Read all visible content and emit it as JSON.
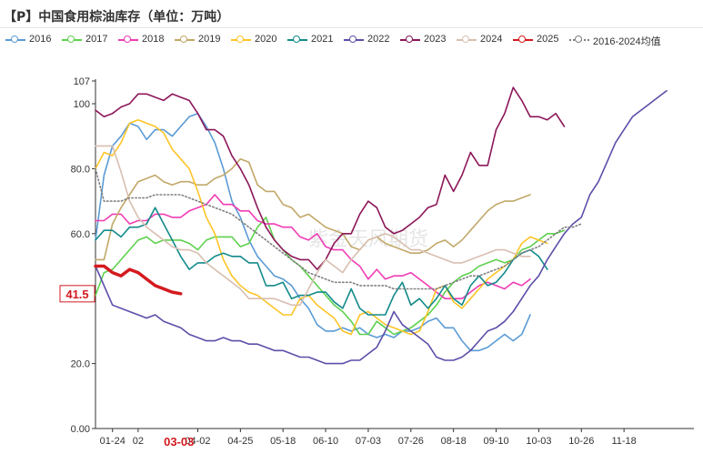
{
  "title": "【P】中国食用棕油库存（单位：万吨）",
  "watermark": "紫金天风期货",
  "latest_marker": {
    "label": "41.5",
    "value": 41.5
  },
  "date_marker": {
    "label": "03-03"
  },
  "chart_data": {
    "type": "line",
    "ylim": [
      0,
      107
    ],
    "yticks": [
      0,
      20,
      40,
      60,
      80,
      100,
      107
    ],
    "ytick_labels": [
      "0.00",
      "20.0",
      "40.0",
      "60.0",
      "80.0",
      "100",
      "107"
    ],
    "xticks": [
      "01-24",
      "02",
      "04-02",
      "04-25",
      "05-18",
      "06-10",
      "07-03",
      "07-26",
      "08-18",
      "09-10",
      "10-03",
      "10-26",
      "11-18"
    ],
    "legend_position": "top",
    "grid": false,
    "series": [
      {
        "name": "2016",
        "color": "#5b9bd5",
        "style": "solid",
        "values": [
          58,
          78,
          87,
          90,
          94,
          93,
          89,
          92,
          92,
          90,
          93,
          96,
          97,
          93,
          88,
          80,
          70,
          65,
          58,
          53,
          50,
          47,
          46,
          44,
          40,
          37,
          32,
          30,
          30,
          31,
          30,
          31,
          29,
          28,
          29,
          28,
          30,
          30,
          31,
          33,
          34,
          31,
          31,
          27,
          24,
          24,
          25,
          27,
          29,
          27,
          29,
          35
        ]
      },
      {
        "name": "2017",
        "color": "#5ed14e",
        "style": "solid",
        "values": [
          41,
          48,
          49,
          52,
          55,
          58,
          59,
          57,
          58,
          58,
          58,
          57,
          55,
          58,
          59,
          59,
          59,
          56,
          57,
          62,
          65,
          58,
          55,
          52,
          50,
          47,
          44,
          41,
          38,
          36,
          33,
          29,
          29,
          33,
          31,
          29,
          30,
          31,
          33,
          35,
          38,
          42,
          45,
          47,
          48,
          50,
          51,
          52,
          51,
          52,
          55,
          56,
          58,
          60,
          60,
          61
        ]
      },
      {
        "name": "2018",
        "color": "#f03cb5",
        "style": "solid",
        "values": [
          64,
          64,
          66,
          66,
          63,
          64,
          64,
          66,
          66,
          65,
          65,
          67,
          68,
          69,
          72,
          69,
          69,
          67,
          67,
          64,
          63,
          63,
          62,
          62,
          59,
          58,
          60,
          56,
          55,
          55,
          52,
          50,
          46,
          49,
          46,
          47,
          47,
          48,
          46,
          44,
          42,
          40,
          40,
          40,
          42,
          44,
          45,
          44,
          43,
          45,
          44,
          46
        ]
      },
      {
        "name": "2019",
        "color": "#c2a868",
        "style": "solid",
        "values": [
          52,
          52,
          63,
          68,
          72,
          76,
          77,
          78,
          76,
          75,
          76,
          76,
          75,
          75,
          77,
          78,
          80,
          83,
          82,
          75,
          73,
          73,
          69,
          68,
          65,
          66,
          64,
          62,
          61,
          60,
          56,
          55,
          58,
          59,
          57,
          56,
          55,
          54,
          54,
          55,
          57,
          58,
          56,
          58,
          61,
          64,
          67,
          69,
          70,
          70,
          71,
          72
        ]
      },
      {
        "name": "2020",
        "color": "#fec427",
        "style": "solid",
        "values": [
          80,
          85,
          84,
          88,
          94,
          95,
          94,
          93,
          91,
          86,
          83,
          80,
          73,
          65,
          60,
          52,
          47,
          44,
          42,
          41,
          39,
          37,
          35,
          35,
          40,
          41,
          38,
          36,
          34,
          30,
          29,
          35,
          36,
          34,
          32,
          31,
          30,
          29,
          30,
          36,
          43,
          44,
          39,
          37,
          40,
          43,
          46,
          48,
          50,
          52,
          57,
          59,
          58,
          57
        ]
      },
      {
        "name": "2021",
        "color": "#138a8a",
        "style": "solid",
        "values": [
          58,
          61,
          61,
          59,
          62,
          62,
          63,
          68,
          63,
          58,
          53,
          49,
          51,
          51,
          53,
          54,
          53,
          53,
          51,
          51,
          44,
          44,
          45,
          40,
          41,
          41,
          42,
          42,
          39,
          37,
          43,
          37,
          35,
          35,
          35,
          41,
          45,
          38,
          40,
          37,
          40,
          44,
          40,
          38,
          44,
          47,
          44,
          45,
          48,
          52,
          54,
          55,
          53,
          49
        ]
      },
      {
        "name": "2022",
        "color": "#5b4fa8",
        "style": "solid",
        "values": [
          50,
          44,
          38,
          37,
          36,
          35,
          34,
          35,
          33,
          32,
          31,
          29,
          28,
          27,
          27,
          28,
          27,
          27,
          26,
          26,
          25,
          24,
          24,
          23,
          22,
          22,
          21,
          20,
          20,
          20,
          21,
          21,
          23,
          25,
          30,
          36,
          32,
          30,
          28,
          26,
          22,
          21,
          21,
          22,
          24,
          27,
          30,
          31,
          33,
          36,
          40,
          44,
          47,
          52,
          56,
          60,
          63,
          65,
          72,
          76,
          82,
          88,
          92,
          96,
          98,
          100,
          102,
          104
        ]
      },
      {
        "name": "2023",
        "color": "#8c1659",
        "style": "solid",
        "values": [
          98,
          96,
          97,
          99,
          100,
          103,
          103,
          102,
          101,
          103,
          102,
          101,
          97,
          92,
          92,
          90,
          84,
          80,
          75,
          68,
          62,
          58,
          55,
          53,
          52,
          52,
          49,
          52,
          57,
          60,
          60,
          66,
          70,
          68,
          62,
          60,
          61,
          63,
          65,
          68,
          69,
          78,
          73,
          78,
          85,
          81,
          81,
          92,
          97,
          105,
          101,
          96,
          96,
          95,
          97,
          93
        ]
      },
      {
        "name": "2024",
        "color": "#d8bfb0",
        "style": "solid",
        "values": [
          87,
          87,
          87,
          79,
          70,
          65,
          62,
          60,
          58,
          56,
          55,
          55,
          54,
          51,
          49,
          47,
          45,
          43,
          40,
          40,
          40,
          40,
          39,
          38,
          38,
          43,
          48,
          52,
          50,
          48,
          52,
          55,
          58,
          59,
          60,
          59,
          57,
          55,
          55,
          54,
          53,
          52,
          51,
          51,
          52,
          53,
          54,
          55,
          55,
          54,
          53,
          53
        ]
      },
      {
        "name": "2025",
        "color": "#d41a1f",
        "style": "solid",
        "values": [
          50,
          50,
          48,
          47,
          49,
          48,
          46,
          44,
          43,
          42,
          41.5
        ]
      },
      {
        "name": "2016-2024均值",
        "color": "#7f7f7f",
        "style": "dotted",
        "values": [
          80,
          70,
          70,
          70,
          71,
          71,
          71,
          72,
          72,
          72,
          72,
          71,
          70,
          69,
          68,
          67,
          66,
          64,
          62,
          60,
          58,
          56,
          54,
          52,
          50,
          48,
          47,
          46,
          45,
          45,
          45,
          44,
          44,
          44,
          44,
          43,
          43,
          43,
          43,
          43,
          43,
          44,
          45,
          46,
          47,
          47,
          48,
          49,
          50,
          52,
          54,
          55,
          56,
          58,
          60,
          62,
          62,
          63
        ]
      }
    ]
  }
}
